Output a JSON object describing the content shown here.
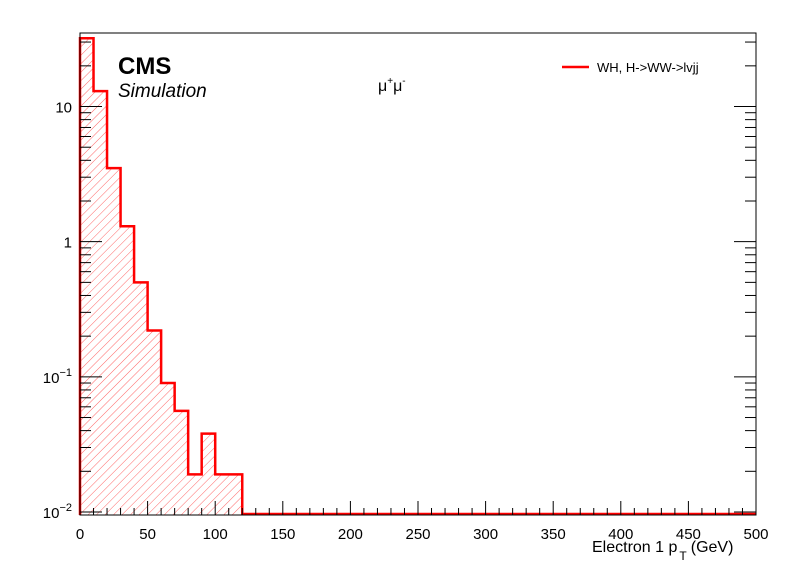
{
  "chart_data": {
    "type": "bar",
    "subtype": "histogram",
    "experiment_label": "CMS",
    "status_label": "Simulation",
    "channel": {
      "base": "μ",
      "sup1": "+",
      "sup2": "-"
    },
    "xlabel": {
      "main": "Electron 1 p",
      "sub": "T",
      "unit": "(GeV)"
    },
    "ylabel": "",
    "xlim": [
      0,
      500
    ],
    "ylim": [
      0.0095,
      35
    ],
    "y_scale": "log",
    "x_ticks": [
      "0",
      "50",
      "100",
      "150",
      "200",
      "250",
      "300",
      "350",
      "400",
      "450",
      "500"
    ],
    "y_ticks": [
      {
        "value": 10,
        "base": "10",
        "exp": ""
      },
      {
        "value": 1,
        "base": "1",
        "exp": ""
      },
      {
        "value": 0.1,
        "base": "10",
        "exp": "−1"
      },
      {
        "value": 0.01,
        "base": "10",
        "exp": "−2"
      }
    ],
    "bin_width": 10,
    "bin_edges_start": 0,
    "series": [
      {
        "name": "WH, H->WW->lvjj",
        "color": "#ff0000",
        "fill": "hatched",
        "values": [
          32,
          13,
          3.5,
          1.3,
          0.5,
          0.22,
          0.09,
          0.056,
          0.019,
          0.038,
          0.019,
          0.019,
          0,
          0,
          0,
          0,
          0,
          0,
          0,
          0,
          0,
          0,
          0,
          0,
          0,
          0,
          0,
          0,
          0,
          0,
          0,
          0,
          0,
          0,
          0,
          0,
          0,
          0,
          0,
          0,
          0,
          0,
          0,
          0,
          0,
          0,
          0,
          0,
          0,
          0
        ]
      }
    ],
    "legend": {
      "position": "top-right"
    }
  }
}
